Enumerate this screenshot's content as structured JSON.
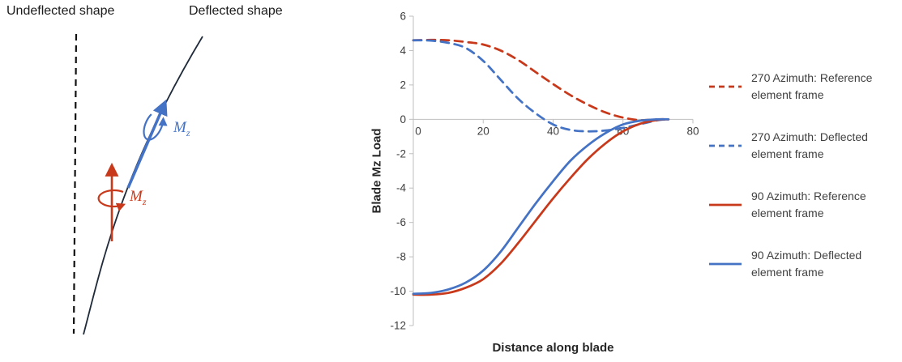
{
  "diagram": {
    "undeflected_label": "Undeflected shape",
    "deflected_label": "Deflected shape",
    "moment_label": {
      "base": "M",
      "sub": "z"
    },
    "colors": {
      "blue": "#4472C4",
      "red": "#C8391B",
      "shape": "#1f2a3a",
      "dashed": "#111111"
    }
  },
  "chart_data": {
    "type": "line",
    "title": "",
    "xlabel": "Distance along blade",
    "ylabel": "Blade Mz Load",
    "xlim": [
      0,
      80
    ],
    "ylim": [
      -12,
      6
    ],
    "x_ticks": [
      0,
      20,
      40,
      60,
      80
    ],
    "y_ticks": [
      -12,
      -10,
      -8,
      -6,
      -4,
      -2,
      0,
      2,
      4,
      6
    ],
    "grid": false,
    "legend_position": "right",
    "axis_color": "#BFBFBF",
    "label_color": "#404040",
    "x": [
      0,
      5,
      10,
      15,
      20,
      25,
      30,
      35,
      40,
      45,
      50,
      55,
      60,
      65,
      70,
      73
    ],
    "series": [
      {
        "name": "270 Azimuth: Reference element frame",
        "color": "#C8391B",
        "dash": true,
        "values": [
          4.6,
          4.62,
          4.6,
          4.5,
          4.35,
          4.0,
          3.45,
          2.75,
          2.05,
          1.4,
          0.85,
          0.4,
          0.1,
          -0.05,
          0,
          0
        ]
      },
      {
        "name": "270 Azimuth: Deflected element frame",
        "color": "#4472C4",
        "dash": true,
        "values": [
          4.6,
          4.58,
          4.45,
          4.15,
          3.4,
          2.3,
          1.2,
          0.35,
          -0.3,
          -0.62,
          -0.7,
          -0.65,
          -0.5,
          -0.28,
          -0.05,
          0
        ]
      },
      {
        "name": "90 Azimuth: Reference element frame",
        "color": "#C8391B",
        "dash": false,
        "values": [
          -10.2,
          -10.2,
          -10.1,
          -9.8,
          -9.3,
          -8.4,
          -7.2,
          -5.9,
          -4.6,
          -3.4,
          -2.3,
          -1.4,
          -0.7,
          -0.25,
          -0.03,
          0
        ]
      },
      {
        "name": "90 Azimuth: Deflected element frame",
        "color": "#4472C4",
        "dash": false,
        "values": [
          -10.15,
          -10.1,
          -9.9,
          -9.5,
          -8.8,
          -7.7,
          -6.3,
          -4.9,
          -3.6,
          -2.4,
          -1.5,
          -0.8,
          -0.3,
          -0.08,
          0,
          0
        ]
      }
    ]
  }
}
